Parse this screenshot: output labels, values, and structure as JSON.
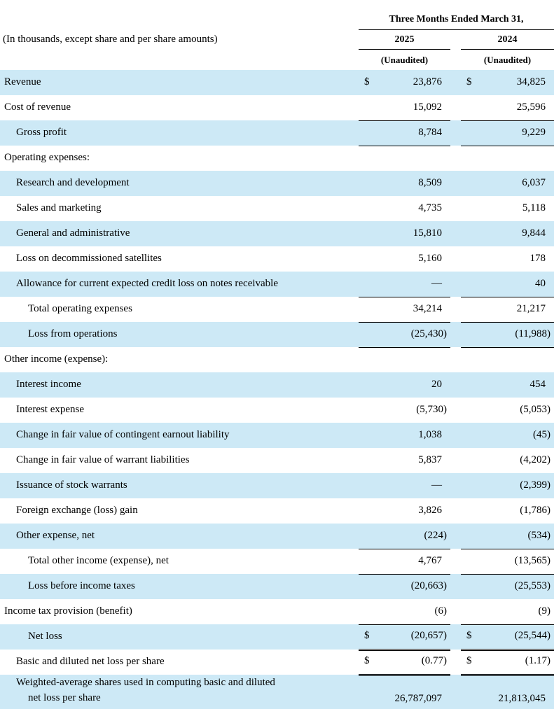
{
  "table": {
    "units_caption": "(In thousands, except share and per share amounts)",
    "period_header": "Three Months Ended March 31,",
    "currency_symbol": "$",
    "columns": [
      {
        "year": "2025",
        "status": "(Unaudited)"
      },
      {
        "year": "2024",
        "status": "(Unaudited)"
      }
    ],
    "rows": [
      {
        "label": "Revenue",
        "indent": 0,
        "dollar": true,
        "values": [
          "23,876",
          "34,825"
        ],
        "shade": true,
        "underline": "none"
      },
      {
        "label": "Cost of revenue",
        "indent": 0,
        "dollar": false,
        "values": [
          "15,092",
          "25,596"
        ],
        "shade": false,
        "underline": "single"
      },
      {
        "label": "Gross profit",
        "indent": 1,
        "dollar": false,
        "values": [
          "8,784",
          "9,229"
        ],
        "shade": true,
        "underline": "single"
      },
      {
        "label": "Operating expenses:",
        "indent": 0,
        "dollar": false,
        "values": [
          "",
          ""
        ],
        "shade": false,
        "underline": "none"
      },
      {
        "label": "Research and development",
        "indent": 1,
        "dollar": false,
        "values": [
          "8,509",
          "6,037"
        ],
        "shade": true,
        "underline": "none"
      },
      {
        "label": "Sales and marketing",
        "indent": 1,
        "dollar": false,
        "values": [
          "4,735",
          "5,118"
        ],
        "shade": false,
        "underline": "none"
      },
      {
        "label": "General and administrative",
        "indent": 1,
        "dollar": false,
        "values": [
          "15,810",
          "9,844"
        ],
        "shade": true,
        "underline": "none"
      },
      {
        "label": "Loss on decommissioned satellites",
        "indent": 1,
        "dollar": false,
        "values": [
          "5,160",
          "178"
        ],
        "shade": false,
        "underline": "none"
      },
      {
        "label": "Allowance for current expected credit loss on notes receivable",
        "indent": 1,
        "dollar": false,
        "values": [
          "—",
          "40"
        ],
        "shade": true,
        "underline": "single"
      },
      {
        "label": "Total operating expenses",
        "indent": 2,
        "dollar": false,
        "values": [
          "34,214",
          "21,217"
        ],
        "shade": false,
        "underline": "single"
      },
      {
        "label": "Loss from operations",
        "indent": 2,
        "dollar": false,
        "values": [
          "(25,430)",
          "(11,988)"
        ],
        "shade": true,
        "underline": "single"
      },
      {
        "label": "Other income (expense):",
        "indent": 0,
        "dollar": false,
        "values": [
          "",
          ""
        ],
        "shade": false,
        "underline": "none"
      },
      {
        "label": "Interest income",
        "indent": 1,
        "dollar": false,
        "values": [
          "20",
          "454"
        ],
        "shade": true,
        "underline": "none"
      },
      {
        "label": "Interest expense",
        "indent": 1,
        "dollar": false,
        "values": [
          "(5,730)",
          "(5,053)"
        ],
        "shade": false,
        "underline": "none"
      },
      {
        "label": "Change in fair value of contingent earnout liability",
        "indent": 1,
        "dollar": false,
        "values": [
          "1,038",
          "(45)"
        ],
        "shade": true,
        "underline": "none"
      },
      {
        "label": "Change in fair value of warrant liabilities",
        "indent": 1,
        "dollar": false,
        "values": [
          "5,837",
          "(4,202)"
        ],
        "shade": false,
        "underline": "none"
      },
      {
        "label": "Issuance of stock warrants",
        "indent": 1,
        "dollar": false,
        "values": [
          "—",
          "(2,399)"
        ],
        "shade": true,
        "underline": "none"
      },
      {
        "label": "Foreign exchange (loss) gain",
        "indent": 1,
        "dollar": false,
        "values": [
          "3,826",
          "(1,786)"
        ],
        "shade": false,
        "underline": "none"
      },
      {
        "label": "Other expense, net",
        "indent": 1,
        "dollar": false,
        "values": [
          "(224)",
          "(534)"
        ],
        "shade": true,
        "underline": "single"
      },
      {
        "label": "Total other income (expense), net",
        "indent": 2,
        "dollar": false,
        "values": [
          "4,767",
          "(13,565)"
        ],
        "shade": false,
        "underline": "single"
      },
      {
        "label": "Loss before income taxes",
        "indent": 2,
        "dollar": false,
        "values": [
          "(20,663)",
          "(25,553)"
        ],
        "shade": true,
        "underline": "none"
      },
      {
        "label": "Income tax provision (benefit)",
        "indent": 0,
        "dollar": false,
        "values": [
          "(6)",
          "(9)"
        ],
        "shade": false,
        "underline": "single"
      },
      {
        "label": "Net loss",
        "indent": 2,
        "dollar": true,
        "values": [
          "(20,657)",
          "(25,544)"
        ],
        "shade": true,
        "underline": "double"
      },
      {
        "label": "Basic and diluted net loss per share",
        "indent": 1,
        "dollar": true,
        "values": [
          "(0.77)",
          "(1.17)"
        ],
        "shade": false,
        "underline": "double"
      },
      {
        "label": [
          "Weighted-average shares used in computing basic and diluted",
          "net loss per share"
        ],
        "indent": 1,
        "dollar": false,
        "values": [
          "26,787,097",
          "21,813,045"
        ],
        "shade": true,
        "underline": "single",
        "tall": true
      }
    ]
  },
  "colors": {
    "row_stripe": "#CDE9F6",
    "text": "#000000",
    "rule": "#000000"
  }
}
